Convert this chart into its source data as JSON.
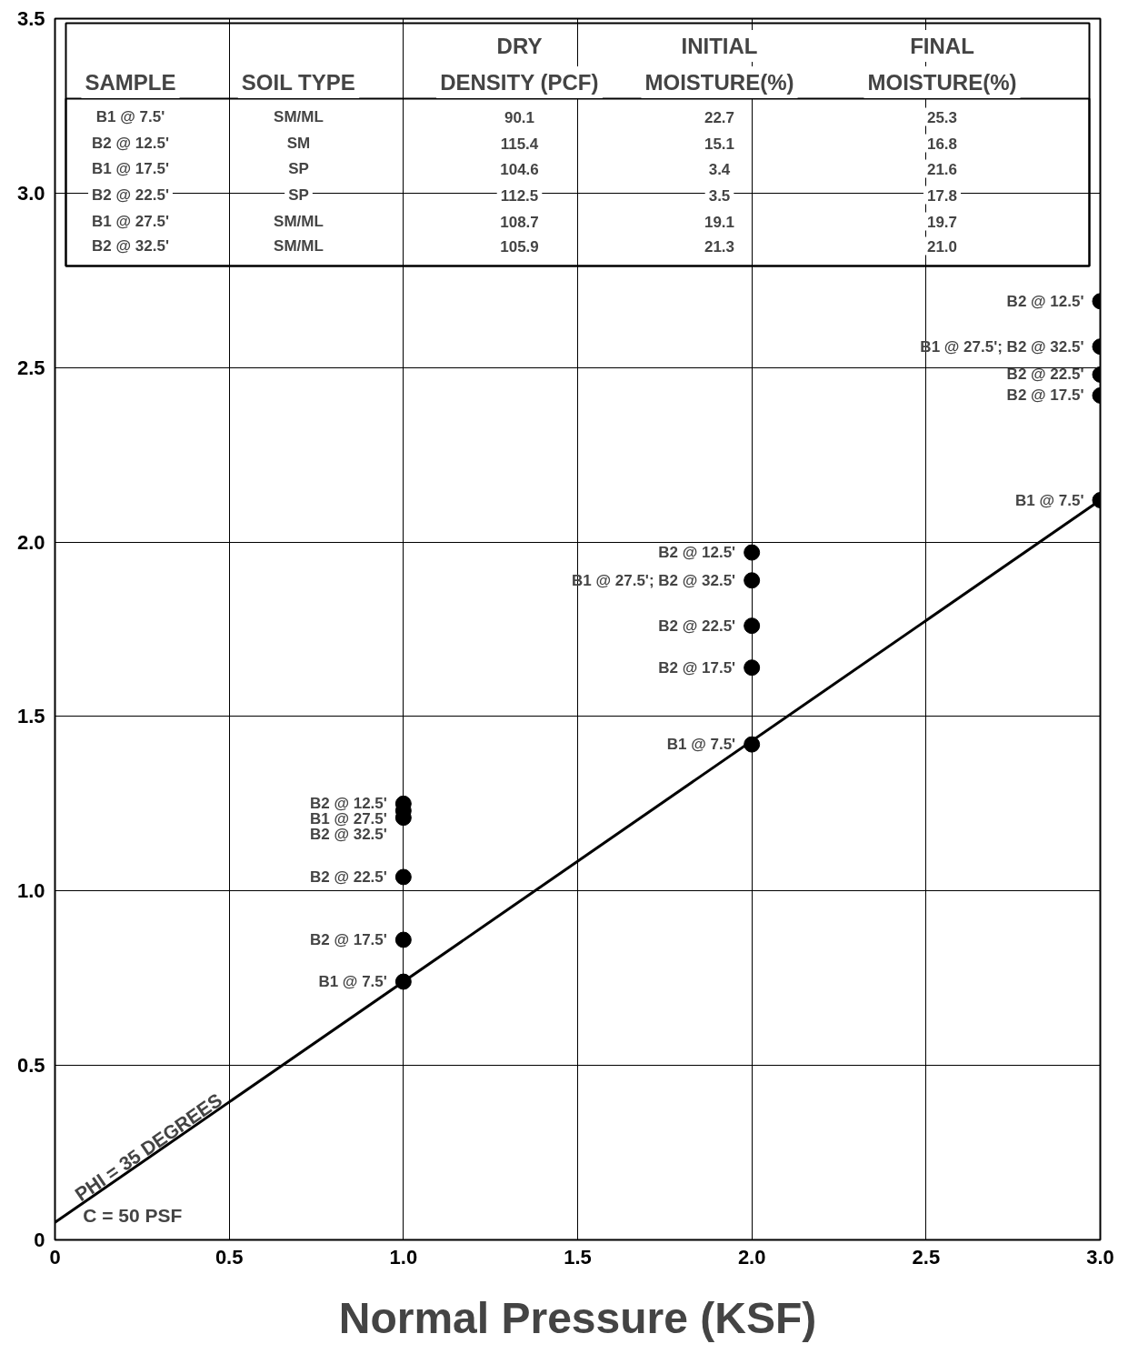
{
  "chart_data": {
    "type": "scatter",
    "xlabel": "Normal Pressure (KSF)",
    "xlim": [
      0,
      3
    ],
    "ylim": [
      0,
      3.5
    ],
    "xticks": [
      0,
      0.5,
      {
        "value": 1,
        "label": "1.0"
      },
      1.5,
      {
        "value": 2,
        "label": "2.0"
      },
      2.5,
      {
        "value": 3,
        "label": "3.0"
      }
    ],
    "yticks": [
      0,
      0.5,
      {
        "value": 1,
        "label": "1.0"
      },
      1.5,
      {
        "value": 2,
        "label": "2.0"
      },
      2.5,
      {
        "value": 3,
        "label": "3.0"
      },
      3.5
    ],
    "grid": true,
    "series": [
      {
        "marker": "circle",
        "color": "#000000",
        "x": [
          1,
          1,
          1,
          1,
          1,
          1,
          2,
          2,
          2,
          2,
          2,
          3,
          3,
          3,
          3,
          3
        ],
        "values": [
          1.25,
          1.23,
          1.21,
          1.04,
          0.86,
          0.74,
          1.97,
          1.89,
          1.76,
          1.64,
          1.42,
          2.69,
          2.56,
          2.48,
          2.42,
          2.12
        ]
      },
      {
        "type": "line",
        "color": "#000000",
        "x": [
          0,
          3
        ],
        "values": [
          0.05,
          2.12
        ]
      }
    ],
    "annotations": [
      "DRY",
      "INITIAL",
      "FINAL",
      "SAMPLE",
      "SOIL TYPE",
      "DENSITY (PCF)",
      "MOISTURE(%)",
      "MOISTURE(%)",
      "B1 @ 7.5'",
      "SM/ML",
      "90.1",
      "22.7",
      "25.3",
      "B2 @ 12.5'",
      "SM",
      "115.4",
      "15.1",
      "16.8",
      "B1 @ 17.5'",
      "SP",
      "104.6",
      "3.4",
      "21.6",
      "B2 @ 22.5'",
      "SP",
      "112.5",
      "3.5",
      "17.8",
      "B1 @ 27.5'",
      "SM/ML",
      "108.7",
      "19.1",
      "19.7",
      "B2 @ 32.5'",
      "SM/ML",
      "105.9",
      "21.3",
      "21.0",
      "PHI = 35 DEGREES",
      "C = 50 PSF",
      {
        "text": "B2 @ 12.5'",
        "x": 1,
        "y": 1.25
      },
      {
        "text": "B1 @ 27.5'",
        "x": 1,
        "y": 1.23
      },
      {
        "text": "B2 @ 32.5'",
        "x": 1,
        "y": 1.21
      },
      {
        "text": "B2 @ 22.5'",
        "x": 1,
        "y": 1.04
      },
      {
        "text": "B2 @ 17.5'",
        "x": 1,
        "y": 0.86
      },
      {
        "text": "B1 @ 7.5'",
        "x": 1,
        "y": 0.74
      },
      {
        "text": "B2 @ 12.5'",
        "x": 2,
        "y": 1.97
      },
      {
        "text": "B1 @ 27.5'; B2 @ 32.5'",
        "x": 2,
        "y": 1.89
      },
      {
        "text": "B2 @ 22.5'",
        "x": 2,
        "y": 1.76
      },
      {
        "text": "B2 @ 17.5'",
        "x": 2,
        "y": 1.64
      },
      {
        "text": "B1 @ 7.5'",
        "x": 2,
        "y": 1.42
      },
      {
        "text": "B2 @ 12.5'",
        "x": 3,
        "y": 2.69
      },
      {
        "text": "B1 @ 27.5'; B2 @ 32.5'",
        "x": 3,
        "y": 2.56
      },
      {
        "text": "B2 @ 22.5'",
        "x": 3,
        "y": 2.48
      },
      {
        "text": "B2 @ 17.5'",
        "x": 3,
        "y": 2.42
      },
      {
        "text": "B1 @ 7.5'",
        "x": 3,
        "y": 2.12
      }
    ]
  }
}
